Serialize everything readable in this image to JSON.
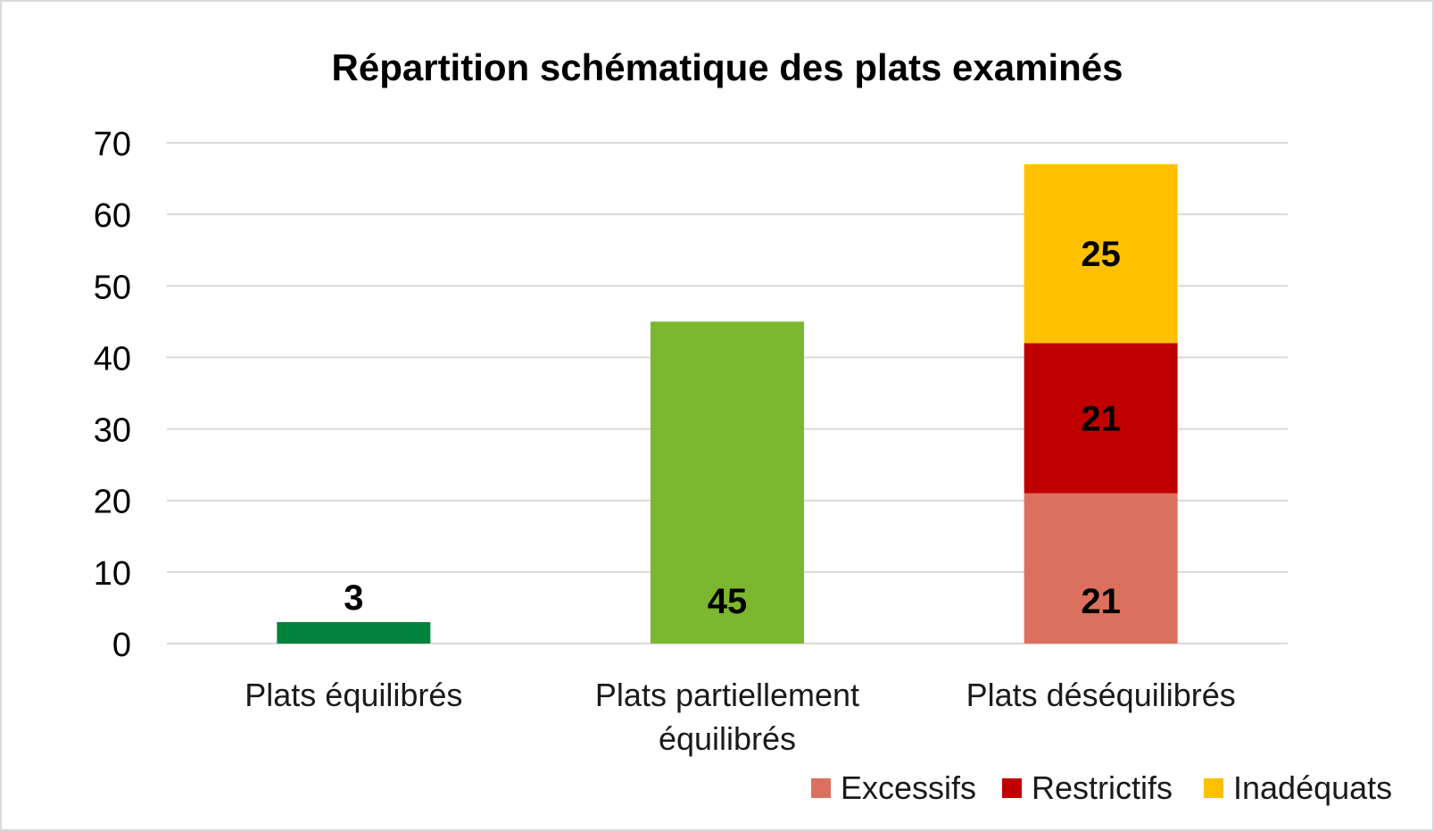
{
  "chart_data": {
    "type": "bar",
    "stacked": true,
    "title": "Répartition schématique des plats examinés",
    "categories": [
      [
        "Plats équilibrés"
      ],
      [
        "Plats partiellement",
        "équilibrés"
      ],
      [
        "Plats déséquilibrés"
      ]
    ],
    "ylim": [
      0,
      70
    ],
    "yticks": [
      0,
      10,
      20,
      30,
      40,
      50,
      60,
      70
    ],
    "grid": true,
    "legend_position": "bottom-right",
    "bars": [
      {
        "category": "Plats équilibrés",
        "segments": [
          {
            "value": 3,
            "label": "3",
            "color": "#00843d"
          }
        ]
      },
      {
        "category": "Plats partiellement équilibrés",
        "segments": [
          {
            "value": 45,
            "label": "45",
            "color": "#7cb82f"
          }
        ]
      },
      {
        "category": "Plats déséquilibrés",
        "segments": [
          {
            "series": "Excessifs",
            "value": 21,
            "label": "21",
            "color": "#dc705f"
          },
          {
            "series": "Restrictifs",
            "value": 21,
            "label": "21",
            "color": "#c00000"
          },
          {
            "series": "Inadéquats",
            "value": 25,
            "label": "25",
            "color": "#ffc000"
          }
        ]
      }
    ],
    "legend": [
      {
        "name": "Excessifs",
        "color": "#dc705f"
      },
      {
        "name": "Restrictifs",
        "color": "#c00000"
      },
      {
        "name": "Inadéquats",
        "color": "#ffc000"
      }
    ],
    "gridline_color": "#d9d9d9"
  }
}
